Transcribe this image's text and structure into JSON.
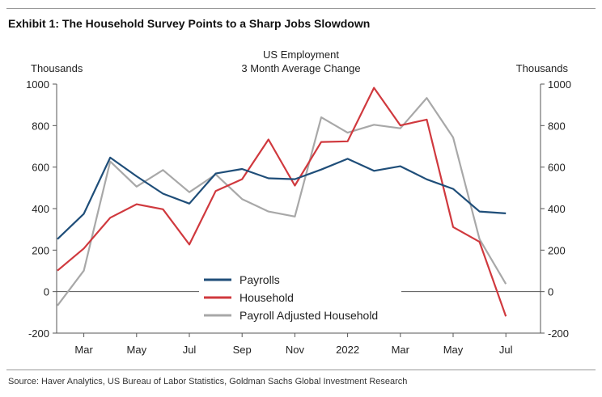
{
  "exhibit_title": "Exhibit 1: The Household Survey Points to a Sharp Jobs Slowdown",
  "source": "Source: Haver Analytics, US Bureau of Labor Statistics, Goldman Sachs Global Investment Research",
  "chart_data": {
    "type": "line",
    "title": "US Employment",
    "subtitle": "3 Month Average Change",
    "ylabel_left": "Thousands",
    "ylabel_right": "Thousands",
    "ylim": [
      -200,
      1000
    ],
    "yticks": [
      -200,
      0,
      200,
      400,
      600,
      800,
      1000
    ],
    "x": [
      "2021-02",
      "2021-03",
      "2021-04",
      "2021-05",
      "2021-06",
      "2021-07",
      "2021-08",
      "2021-09",
      "2021-10",
      "2021-11",
      "2021-12",
      "2022-01",
      "2022-02",
      "2022-03",
      "2022-04",
      "2022-05",
      "2022-06",
      "2022-07"
    ],
    "xtick_labels": [
      {
        "month": "2021-03",
        "label": "Mar"
      },
      {
        "month": "2021-05",
        "label": "May"
      },
      {
        "month": "2021-07",
        "label": "Jul"
      },
      {
        "month": "2021-09",
        "label": "Sep"
      },
      {
        "month": "2021-11",
        "label": "Nov"
      },
      {
        "month": "2022-01",
        "label": "2022"
      },
      {
        "month": "2022-03",
        "label": "Mar"
      },
      {
        "month": "2022-05",
        "label": "May"
      },
      {
        "month": "2022-07",
        "label": "Jul"
      }
    ],
    "grid": false,
    "legend_placement": "bottom-center",
    "series": [
      {
        "name": "Payrolls",
        "color": "#1f4e79",
        "values": [
          253,
          375,
          646,
          556,
          472,
          424,
          569,
          591,
          546,
          542,
          588,
          640,
          582,
          604,
          541,
          495,
          386,
          377
        ]
      },
      {
        "name": "Household",
        "color": "#d0393e",
        "values": [
          101,
          208,
          356,
          421,
          397,
          227,
          485,
          542,
          733,
          511,
          721,
          724,
          982,
          801,
          829,
          311,
          240,
          -119
        ]
      },
      {
        "name": "Payroll Adjusted Household",
        "color": "#a8a8a8",
        "values": [
          -67,
          101,
          627,
          506,
          586,
          479,
          565,
          446,
          386,
          362,
          840,
          766,
          804,
          787,
          933,
          743,
          253,
          37
        ]
      }
    ]
  }
}
